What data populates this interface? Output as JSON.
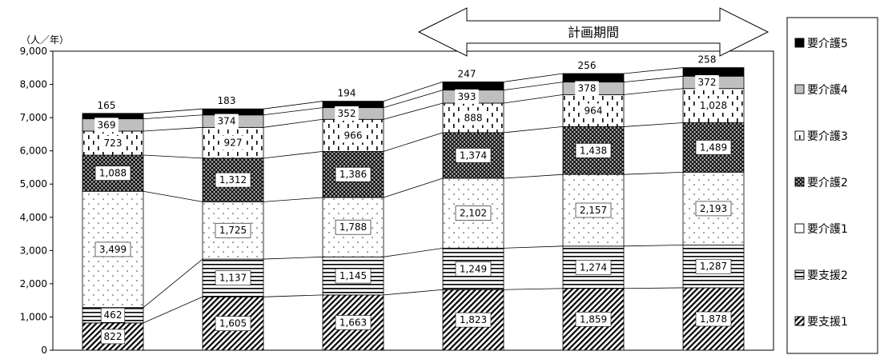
{
  "chart_data": {
    "type": "bar",
    "stacked": true,
    "unit_label": "（人／年）",
    "ylim": [
      0,
      9000
    ],
    "yticks": [
      "0",
      "1,000",
      "2,000",
      "3,000",
      "4,000",
      "5,000",
      "6,000",
      "7,000",
      "8,000",
      "9,000"
    ],
    "categories": [
      "",
      "",
      "",
      "",
      "",
      ""
    ],
    "series": [
      {
        "name": "要支援1",
        "values": [
          822,
          1605,
          1663,
          1823,
          1859,
          1878
        ],
        "labels": [
          "822",
          "1,605",
          "1,663",
          "1,823",
          "1,859",
          "1,878"
        ],
        "pattern": "diag"
      },
      {
        "name": "要支援2",
        "values": [
          462,
          1137,
          1145,
          1249,
          1274,
          1287
        ],
        "labels": [
          "462",
          "1,137",
          "1,145",
          "1,249",
          "1,274",
          "1,287"
        ],
        "pattern": "hlines"
      },
      {
        "name": "要介護1",
        "values": [
          3499,
          1725,
          1788,
          2102,
          2157,
          2193
        ],
        "labels": [
          "3,499",
          "1,725",
          "1,788",
          "2,102",
          "2,157",
          "2,193"
        ],
        "pattern": "dots"
      },
      {
        "name": "要介護2",
        "values": [
          1088,
          1312,
          1386,
          1374,
          1438,
          1489
        ],
        "labels": [
          "1,088",
          "1,312",
          "1,386",
          "1,374",
          "1,438",
          "1,489"
        ],
        "pattern": "cross"
      },
      {
        "name": "要介護3",
        "values": [
          723,
          927,
          966,
          888,
          964,
          1028
        ],
        "labels": [
          "723",
          "927",
          "966",
          "888",
          "964",
          "1,028"
        ],
        "pattern": "dashes"
      },
      {
        "name": "要介護4",
        "values": [
          369,
          374,
          352,
          393,
          378,
          372
        ],
        "labels": [
          "369",
          "374",
          "352",
          "393",
          "378",
          "372"
        ],
        "pattern": "gray"
      },
      {
        "name": "要介護5",
        "values": [
          165,
          183,
          194,
          247,
          256,
          258
        ],
        "labels": [
          "165",
          "183",
          "194",
          "247",
          "256",
          "258"
        ],
        "pattern": "black"
      }
    ],
    "legend_position": "right",
    "grid": false,
    "annotation": {
      "label": "計画期間",
      "span": [
        3,
        5
      ]
    }
  }
}
